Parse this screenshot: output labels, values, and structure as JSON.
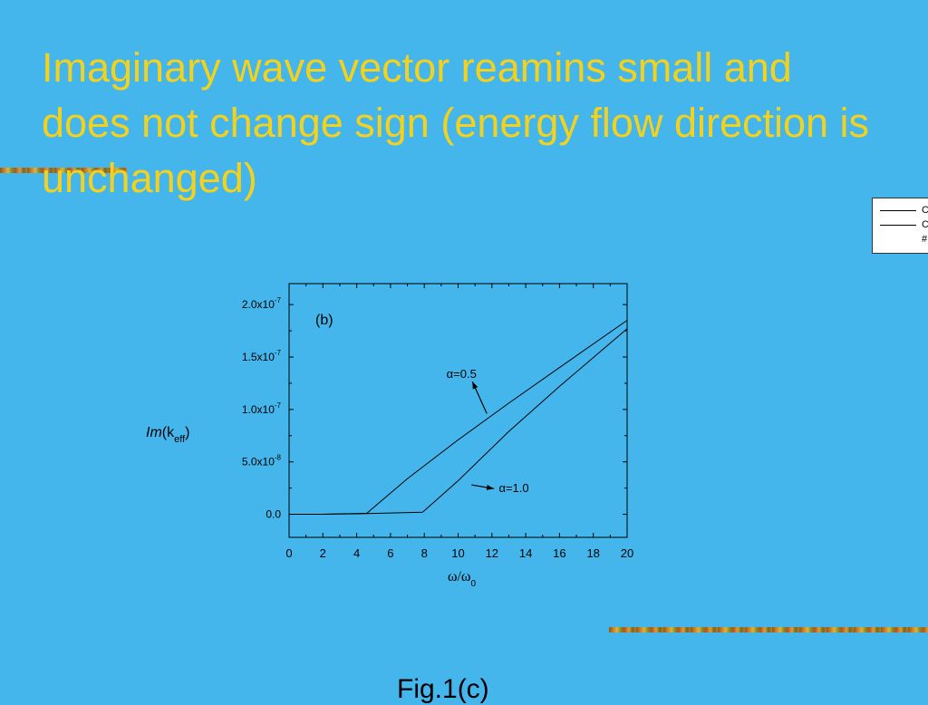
{
  "slide": {
    "title": "Imaginary wave vector reamins small and does not change sign (energy flow direction is unchanged)",
    "caption": "Fig.1(c)"
  },
  "legend_box": {
    "items": [
      "C",
      "C",
      "#"
    ]
  },
  "colors": {
    "background": "#45B6EC",
    "title": "#F2D21E",
    "plot_background": "#45B6EC",
    "line": "#000000"
  },
  "chart_data": {
    "type": "line",
    "panel_label": "(b)",
    "xlabel": "ω/ω₀",
    "ylabel": "Im(k_eff)",
    "xlim": [
      0,
      20
    ],
    "ylim": [
      -2.2e-08,
      2.2e-07
    ],
    "x_ticks": [
      0,
      2,
      4,
      6,
      8,
      10,
      12,
      14,
      16,
      18,
      20
    ],
    "y_ticks": [
      {
        "value": 0,
        "label": "0.0"
      },
      {
        "value": 5e-08,
        "label": "5.0x10",
        "exp": "-8"
      },
      {
        "value": 1e-07,
        "label": "1.0x10",
        "exp": "-7"
      },
      {
        "value": 1.5e-07,
        "label": "1.5x10",
        "exp": "-7"
      },
      {
        "value": 2e-07,
        "label": "2.0x10",
        "exp": "-7"
      }
    ],
    "grid": false,
    "series": [
      {
        "name": "α=0.5",
        "x": [
          0,
          2,
          4.6,
          7,
          10,
          13,
          16,
          20
        ],
        "y": [
          0,
          0,
          1e-09,
          3.4e-08,
          7.1e-08,
          1.06e-07,
          1.4e-07,
          1.85e-07
        ]
      },
      {
        "name": "α=1.0",
        "x": [
          0,
          2,
          4,
          7.9,
          10,
          13,
          16,
          20
        ],
        "y": [
          0,
          0,
          5e-10,
          2e-09,
          3.2e-08,
          7.9e-08,
          1.22e-07,
          1.77e-07
        ]
      }
    ],
    "annotations": [
      {
        "text": "α=0.5",
        "x": 10.2,
        "y": 1.3e-07,
        "arrow_to": [
          11.7,
          9.6e-08
        ]
      },
      {
        "text": "α=1.0",
        "x": 13.3,
        "y": 2.1e-08,
        "arrow_to": [
          10.8,
          2.8e-08
        ]
      }
    ]
  }
}
